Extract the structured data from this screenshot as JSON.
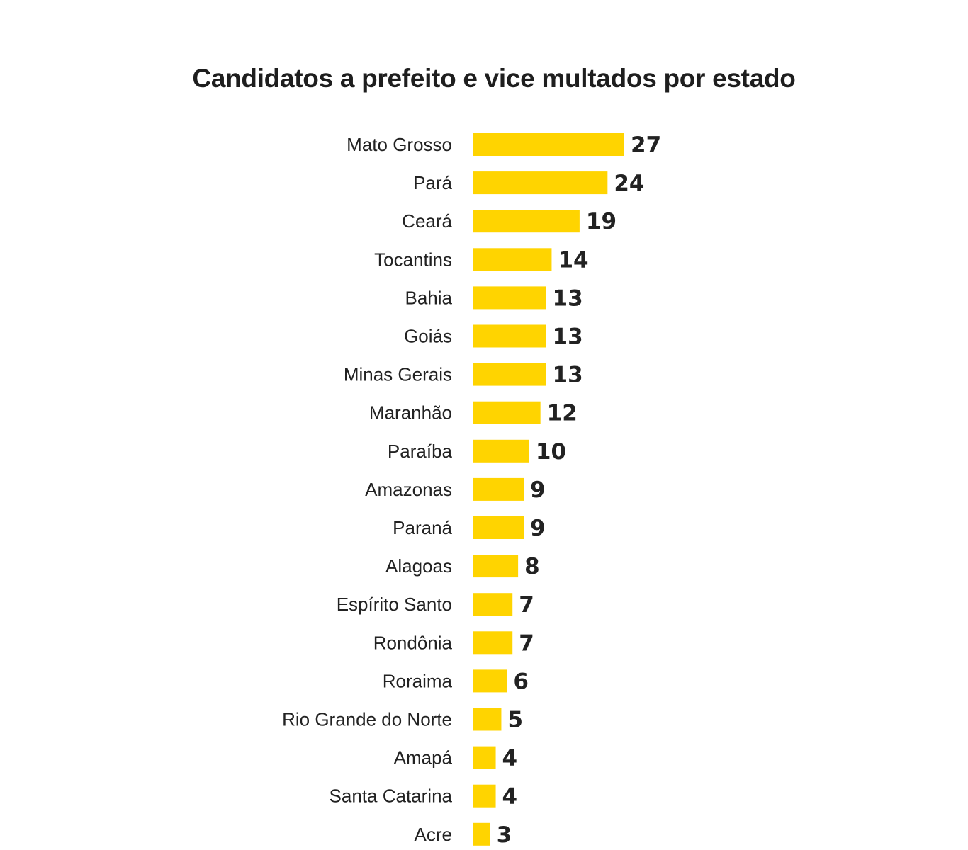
{
  "chart_data": {
    "type": "bar",
    "orientation": "horizontal",
    "title": "Candidatos a prefeito e vice multados por estado",
    "xlabel": "",
    "ylabel": "",
    "grid": false,
    "color": "#FFD400",
    "categories": [
      "Mato Grosso",
      "Pará",
      "Ceará",
      "Tocantins",
      "Bahia",
      "Goiás",
      "Minas Gerais",
      "Maranhão",
      "Paraíba",
      "Amazonas",
      "Paraná",
      "Alagoas",
      "Espírito Santo",
      "Rondônia",
      "Roraima",
      "Rio Grande do Norte",
      "Amapá",
      "Santa Catarina",
      "Acre"
    ],
    "values": [
      27,
      24,
      19,
      14,
      13,
      13,
      13,
      12,
      10,
      9,
      9,
      8,
      7,
      7,
      6,
      5,
      4,
      4,
      3
    ],
    "xlim": [
      0,
      27
    ]
  }
}
